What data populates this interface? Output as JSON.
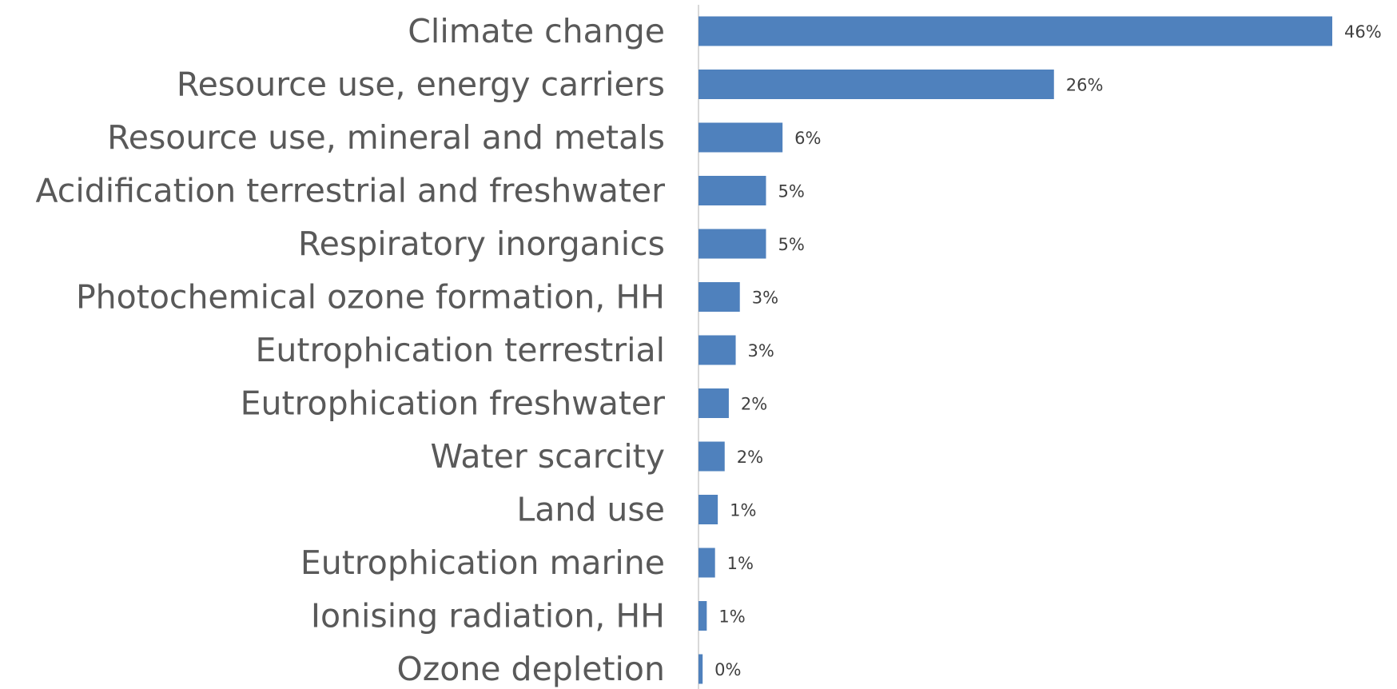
{
  "chart_data": {
    "type": "bar",
    "orientation": "horizontal",
    "title": "",
    "xlabel": "",
    "ylabel": "",
    "categories": [
      "Climate change",
      "Resource use, energy carriers",
      "Resource use, mineral and metals",
      "Acidification terrestrial and freshwater",
      "Respiratory inorganics",
      "Photochemical ozone formation, HH",
      "Eutrophication terrestrial",
      "Eutrophication freshwater",
      "Water scarcity",
      "Land use",
      "Eutrophication marine",
      "Ionising radiation, HH",
      "Ozone depletion"
    ],
    "values": [
      46.0,
      25.8,
      6.1,
      4.9,
      4.9,
      3.0,
      2.7,
      2.2,
      1.9,
      1.4,
      1.2,
      0.6,
      0.3
    ],
    "data_labels": [
      "46%",
      "26%",
      "6%",
      "5%",
      "5%",
      "3%",
      "3%",
      "2%",
      "2%",
      "1%",
      "1%",
      "1%",
      "0%"
    ],
    "xlim": [
      0,
      50
    ],
    "grid": false,
    "legend": "none",
    "bar_color": "#4f81bd",
    "axis_color": "#d9d9d9"
  }
}
